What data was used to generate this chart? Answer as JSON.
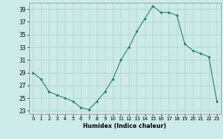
{
  "x": [
    0,
    1,
    2,
    3,
    4,
    5,
    6,
    7,
    8,
    9,
    10,
    11,
    12,
    13,
    14,
    15,
    16,
    17,
    18,
    19,
    20,
    21,
    22,
    23
  ],
  "y": [
    29,
    28,
    26,
    25.5,
    25,
    24.5,
    23.5,
    23.2,
    24.5,
    26,
    28,
    31,
    33,
    35.5,
    37.5,
    39.5,
    38.5,
    38.5,
    38,
    33.5,
    32.5,
    32,
    31.5,
    24.5
  ],
  "xlim": [
    -0.5,
    23.5
  ],
  "ylim": [
    22.5,
    40
  ],
  "yticks": [
    23,
    25,
    27,
    29,
    31,
    33,
    35,
    37,
    39
  ],
  "xticks": [
    0,
    1,
    2,
    3,
    4,
    5,
    6,
    7,
    8,
    9,
    10,
    11,
    12,
    13,
    14,
    15,
    16,
    17,
    18,
    19,
    20,
    21,
    22,
    23
  ],
  "xlabel": "Humidex (Indice chaleur)",
  "line_color": "#1a7a6e",
  "marker": "D",
  "marker_size": 1.8,
  "bg_color": "#cceae7",
  "grid_color": "#aad4d0",
  "title": ""
}
